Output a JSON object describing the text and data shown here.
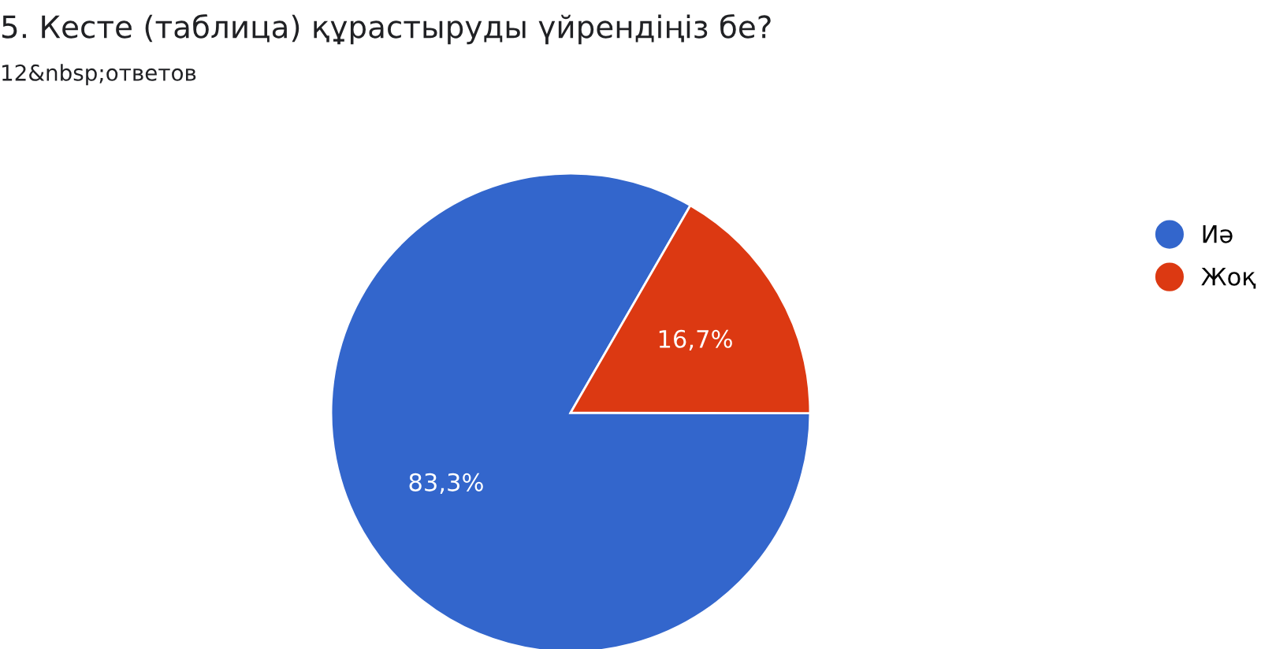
{
  "chart_data": {
    "type": "pie",
    "title": "5. Кесте (таблица) құрастыруды үйрендіңіз бе?",
    "subtitle": "12&nbsp;ответов",
    "categories": [
      "Иә",
      "Жоқ"
    ],
    "values": [
      83.3,
      16.7
    ],
    "colors": [
      "#3366cc",
      "#dc3912"
    ],
    "value_labels": [
      "83,3%",
      "16,7%"
    ],
    "legend": "right"
  }
}
